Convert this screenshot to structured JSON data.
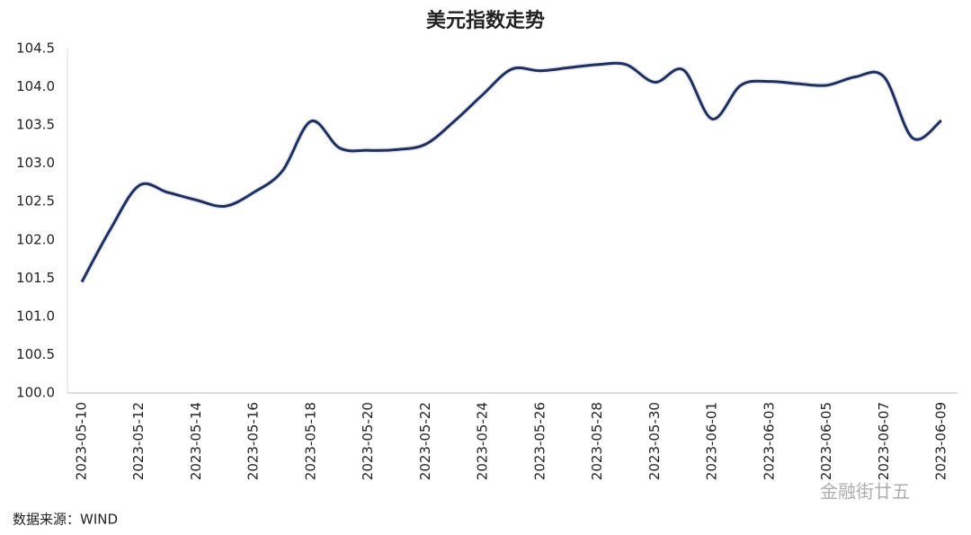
{
  "chart_data": {
    "type": "line",
    "title": "美元指数走势",
    "categories": [
      "2023-05-10",
      null,
      "2023-05-12",
      null,
      "2023-05-14",
      null,
      "2023-05-16",
      null,
      "2023-05-18",
      null,
      "2023-05-20",
      null,
      "2023-05-22",
      null,
      "2023-05-24",
      null,
      "2023-05-26",
      null,
      "2023-05-28",
      null,
      "2023-05-30",
      null,
      "2023-06-01",
      null,
      "2023-06-03",
      null,
      "2023-06-05",
      null,
      "2023-06-07",
      null,
      "2023-06-09"
    ],
    "series": [
      {
        "name": "美元指数",
        "color": "#1f2f5e",
        "values": [
          101.45,
          102.14,
          102.71,
          102.62,
          102.52,
          102.44,
          102.62,
          102.9,
          103.55,
          103.2,
          103.17,
          103.18,
          103.25,
          103.55,
          103.9,
          104.23,
          104.21,
          104.25,
          104.29,
          104.29,
          104.06,
          104.22,
          103.58,
          104.02,
          104.07,
          104.04,
          104.02,
          104.13,
          104.13,
          103.33,
          103.56
        ]
      }
    ],
    "ylim": [
      100,
      104.5
    ],
    "yticks": [
      {
        "value": 100,
        "label": "100.0"
      },
      {
        "value": 100.5,
        "label": "100.5"
      },
      {
        "value": 101,
        "label": "101.0"
      },
      {
        "value": 101.5,
        "label": "101.5"
      },
      {
        "value": 102,
        "label": "102.0"
      },
      {
        "value": 102.5,
        "label": "102.5"
      },
      {
        "value": 103,
        "label": "103.0"
      },
      {
        "value": 103.5,
        "label": "103.5"
      },
      {
        "value": 104,
        "label": "104.0"
      },
      {
        "value": 104.5,
        "label": "104.5"
      }
    ],
    "grid": false,
    "source": "数据来源：WIND",
    "watermark": "金融街廿五"
  }
}
